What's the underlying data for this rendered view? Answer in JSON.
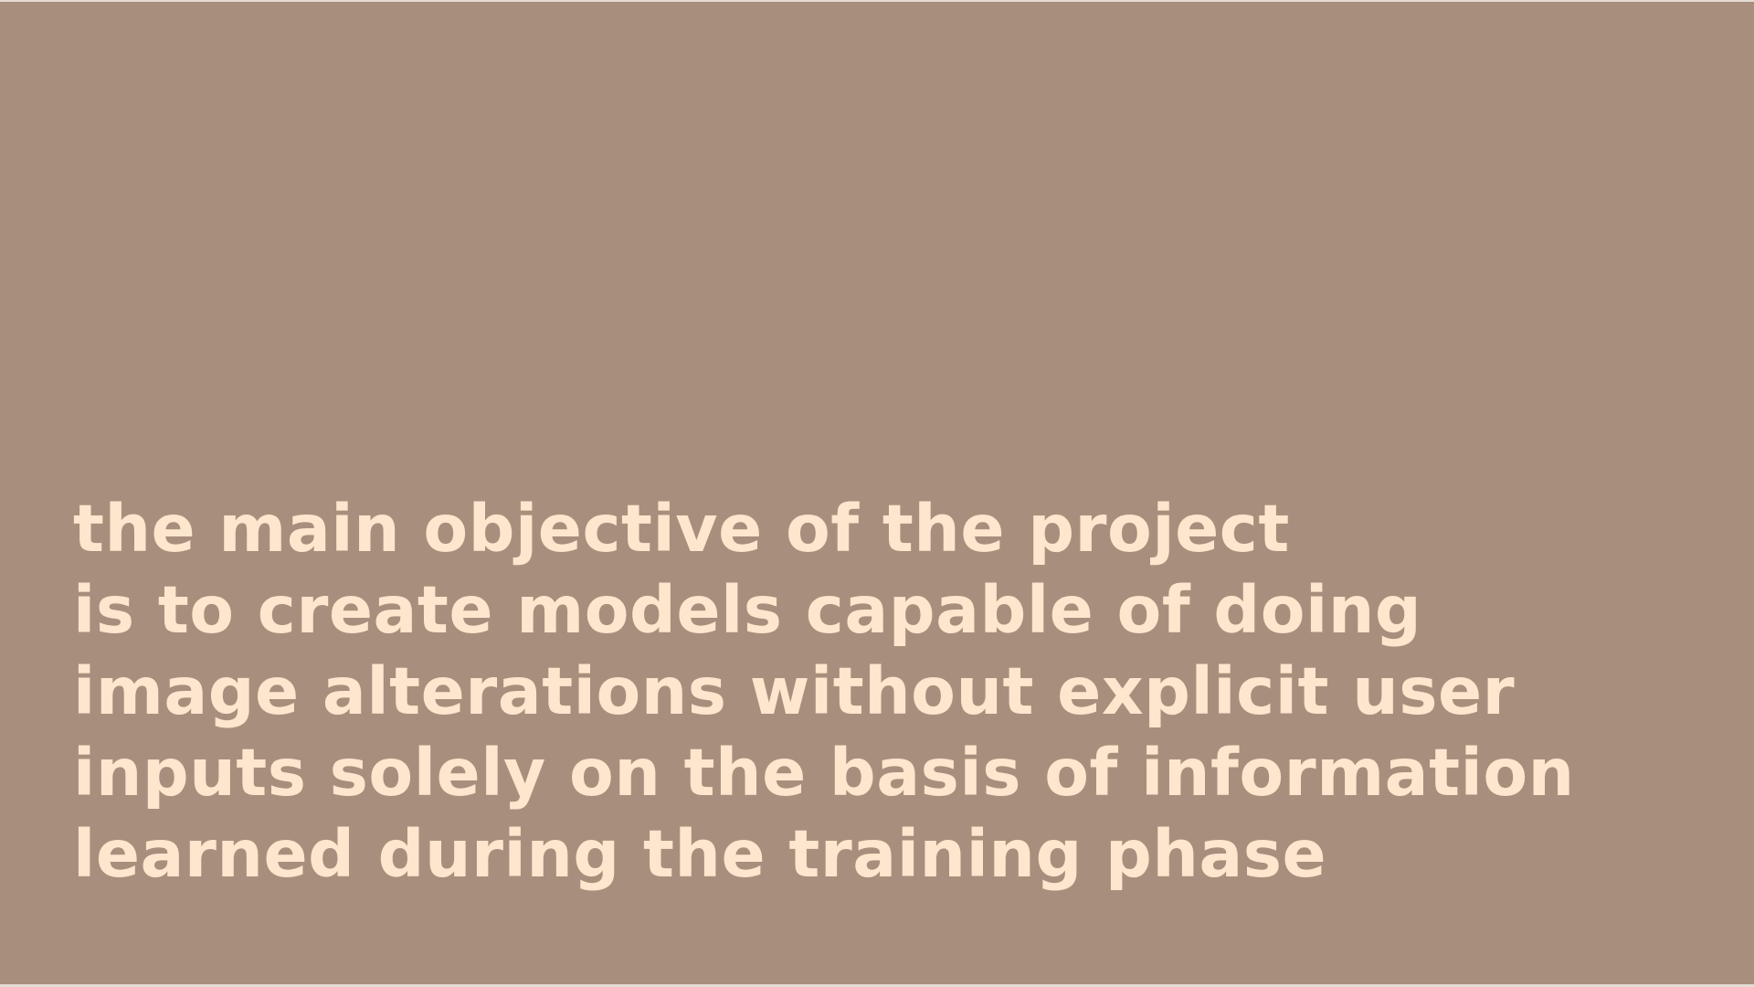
{
  "colors": {
    "background": "#a88f7d",
    "text": "#fce6cd",
    "frame": "#e4dcd4"
  },
  "slide": {
    "lines": [
      "the main objective of the project",
      "is to create models capable of doing",
      "image alterations without explicit user",
      "inputs solely on the basis of information",
      "learned during the training phase"
    ]
  }
}
